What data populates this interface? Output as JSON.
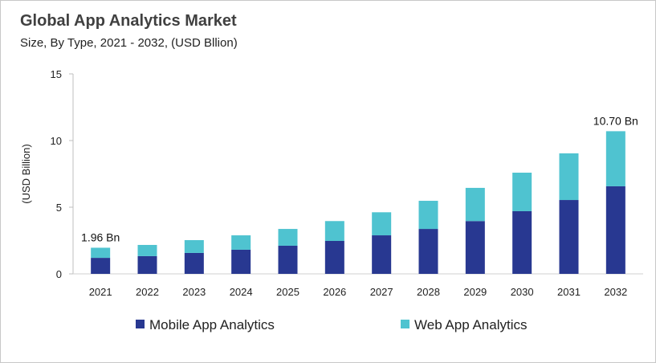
{
  "chart_data": {
    "type": "bar",
    "stacked": true,
    "title": "Global App Analytics Market",
    "subtitle": "Size, By Type, 2021 - 2032, (USD Bllion)",
    "xlabel": "",
    "ylabel": "(USD Billion)",
    "ylim": [
      0,
      15
    ],
    "yticks": [
      0,
      5,
      10,
      15
    ],
    "grid": false,
    "legend_placement": "bottom",
    "categories": [
      "2021",
      "2022",
      "2023",
      "2024",
      "2025",
      "2026",
      "2027",
      "2028",
      "2029",
      "2030",
      "2031",
      "2032"
    ],
    "series": [
      {
        "name": "Mobile App Analytics",
        "color": "#283891",
        "values": [
          1.2,
          1.33,
          1.57,
          1.81,
          2.11,
          2.47,
          2.89,
          3.37,
          3.96,
          4.7,
          5.54,
          6.57
        ]
      },
      {
        "name": "Web App Analytics",
        "color": "#4fc3d0",
        "values": [
          0.76,
          0.84,
          0.96,
          1.08,
          1.26,
          1.49,
          1.73,
          2.11,
          2.49,
          2.89,
          3.5,
          4.13
        ]
      }
    ],
    "annotations": [
      {
        "category": "2021",
        "text": "1.96 Bn"
      },
      {
        "category": "2032",
        "text": "10.70 Bn"
      }
    ]
  }
}
